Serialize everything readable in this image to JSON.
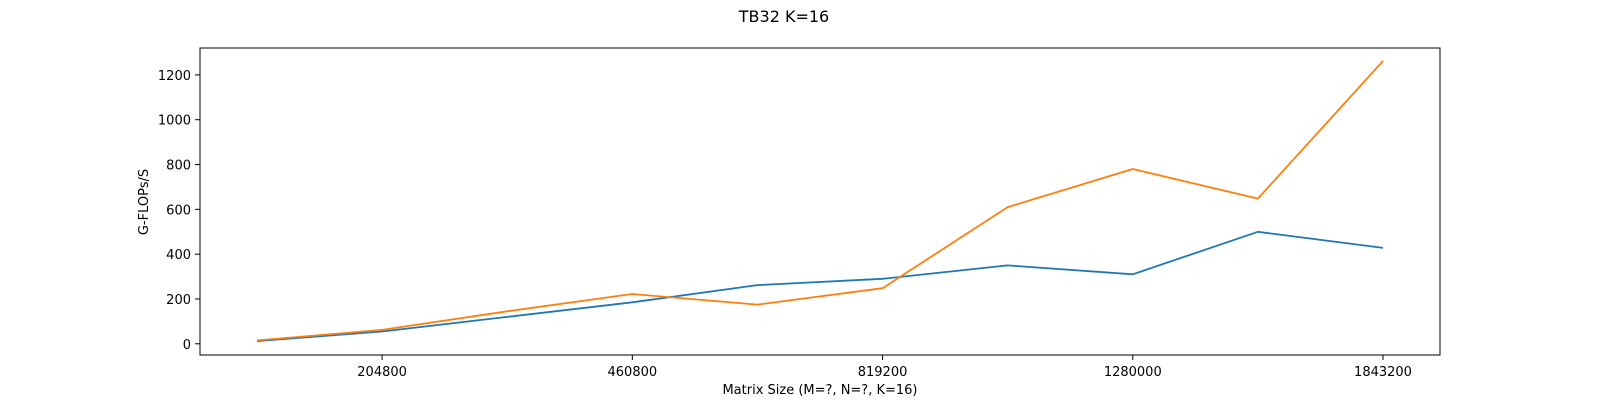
{
  "chart_data": {
    "type": "line",
    "title": "TB32 K=16",
    "xlabel": "Matrix Size (M=?, N=?, K=16)",
    "ylabel": "G-FLOPs/S",
    "x_ticks": [
      "204800",
      "460800",
      "819200",
      "1280000",
      "1843200"
    ],
    "y_ticks": [
      0,
      200,
      400,
      600,
      800,
      1000,
      1200
    ],
    "ylim": [
      -50,
      1320
    ],
    "grid": false,
    "series": [
      {
        "color": "#1f77b4",
        "values": [
          12,
          55,
          120,
          185,
          262,
          290,
          350,
          310,
          500,
          428
        ]
      },
      {
        "color": "#ff7f0e",
        "values": [
          15,
          62,
          145,
          222,
          175,
          248,
          610,
          780,
          648,
          1262
        ]
      }
    ]
  }
}
